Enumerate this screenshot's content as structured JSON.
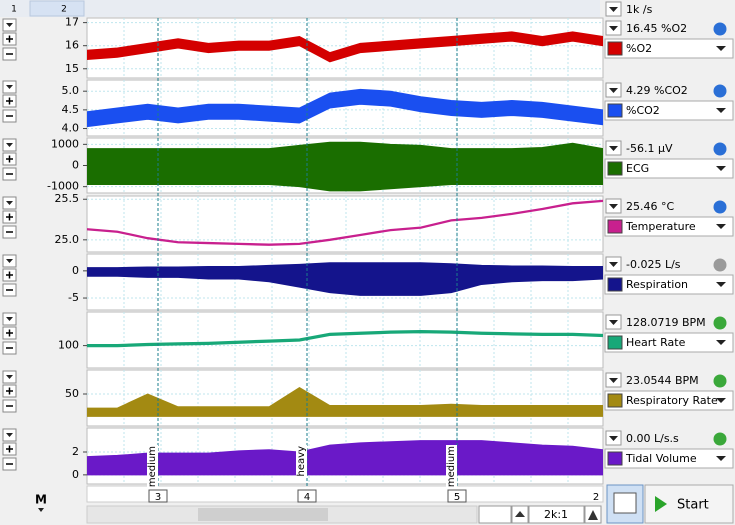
{
  "tabs": [
    "1",
    "2"
  ],
  "sample_rate": "1k /s",
  "channels": [
    {
      "name": "%O2",
      "reading": "16.45 %O2",
      "color": "#d40000",
      "icon_color": "#2a6fd6",
      "ylim": [
        14.6,
        17.2
      ],
      "yticks": [
        15,
        16,
        17
      ],
      "trace": {
        "min": [
          15.4,
          15.5,
          15.7,
          15.9,
          15.7,
          15.8,
          15.8,
          16.0,
          15.3,
          15.7,
          15.8,
          15.9,
          16.0,
          16.1,
          16.2,
          16.0,
          16.2,
          16.0
        ],
        "max": [
          15.8,
          15.9,
          16.1,
          16.3,
          16.1,
          16.2,
          16.2,
          16.4,
          15.7,
          16.1,
          16.2,
          16.3,
          16.4,
          16.5,
          16.6,
          16.4,
          16.6,
          16.4
        ]
      }
    },
    {
      "name": "%CO2",
      "reading": "4.29 %CO2",
      "color": "#1a4ff0",
      "icon_color": "#2a6fd6",
      "ylim": [
        3.8,
        5.3
      ],
      "yticks": [
        {
          "value": 4,
          "label": "4.0"
        },
        {
          "value": 4.5,
          "label": "4.5"
        },
        {
          "value": 5,
          "label": "5.0"
        }
      ],
      "trace": {
        "min": [
          4.05,
          4.15,
          4.25,
          4.15,
          4.25,
          4.25,
          4.2,
          4.15,
          4.55,
          4.65,
          4.6,
          4.45,
          4.35,
          4.3,
          4.35,
          4.3,
          4.2,
          4.1
        ],
        "max": [
          4.45,
          4.55,
          4.65,
          4.55,
          4.65,
          4.65,
          4.6,
          4.55,
          4.95,
          5.05,
          5.0,
          4.85,
          4.75,
          4.7,
          4.75,
          4.7,
          4.6,
          4.5
        ]
      }
    },
    {
      "name": "ECG",
      "reading": "-56.1 µV",
      "color": "#1a6e00",
      "icon_color": "#2a6fd6",
      "ylim": [
        -1300,
        1300
      ],
      "yticks": [
        -1000,
        0,
        1000
      ],
      "trace": {
        "min": [
          -900,
          -900,
          -900,
          -900,
          -900,
          -900,
          -900,
          -1000,
          -1200,
          -1200,
          -1100,
          -1000,
          -900,
          -900,
          -900,
          -900,
          -900,
          -900
        ],
        "max": [
          800,
          800,
          800,
          800,
          800,
          800,
          800,
          950,
          1100,
          1100,
          1000,
          950,
          800,
          800,
          800,
          850,
          1050,
          800
        ]
      }
    },
    {
      "name": "Temperature",
      "reading": "25.46 °C",
      "color": "#c8208e",
      "icon_color": "#2a6fd6",
      "ylim": [
        24.85,
        25.54
      ],
      "yticks": [
        {
          "value": 25,
          "label": "25.0"
        },
        25.5
      ],
      "trace": {
        "min": [
          25.122,
          25.092,
          25.012,
          24.962,
          24.952,
          24.942,
          24.932,
          24.942,
          24.992,
          25.052,
          25.112,
          25.142,
          25.232,
          25.262,
          25.312,
          25.372,
          25.442,
          25.472
        ],
        "max": [
          25.138,
          25.108,
          25.028,
          24.978,
          24.968,
          24.958,
          24.948,
          24.958,
          25.008,
          25.068,
          25.128,
          25.158,
          25.248,
          25.278,
          25.328,
          25.388,
          25.458,
          25.488
        ]
      }
    },
    {
      "name": "Respiration",
      "reading": "-0.025 L/s",
      "color": "#14148c",
      "icon_color": "#9a9a9a",
      "ylim": [
        -7.2,
        3.1
      ],
      "yticks": [
        -5,
        0
      ],
      "trace": {
        "min": [
          -1,
          -1,
          -1.2,
          -1.2,
          -1.5,
          -1.5,
          -2,
          -3,
          -4,
          -4.5,
          -4.5,
          -4.5,
          -4,
          -2.5,
          -2,
          -1.8,
          -1.8,
          -1.5
        ],
        "max": [
          0.6,
          0.6,
          0.7,
          0.7,
          0.8,
          0.8,
          1,
          1.2,
          1.5,
          1.5,
          1.5,
          1.5,
          1.3,
          1,
          0.9,
          0.9,
          0.8,
          0.8
        ]
      }
    },
    {
      "name": "Heart Rate",
      "reading": "128.0719 BPM",
      "color": "#18a878",
      "icon_color": "#3aa83a",
      "ylim": [
        60,
        160
      ],
      "yticks": [
        100
      ],
      "trace": {
        "min": [
          98,
          98,
          100,
          101,
          102,
          104,
          106,
          108,
          118,
          120,
          122,
          123,
          122,
          120,
          119,
          118,
          118,
          116
        ],
        "max": [
          102,
          102,
          104,
          105,
          106,
          108,
          110,
          112,
          122,
          124,
          126,
          127,
          126,
          124,
          123,
          122,
          122,
          120
        ]
      }
    },
    {
      "name": "Respiratory Rate",
      "reading": "23.0544 BPM",
      "color": "#a38a12",
      "icon_color": "#3aa83a",
      "ylim": [
        0,
        87.5
      ],
      "yticks": [
        50
      ],
      "trace": {
        "min": [
          15,
          15,
          15,
          15,
          15,
          15,
          15,
          15,
          15,
          15,
          15,
          15,
          15,
          15,
          15,
          15,
          15,
          15
        ],
        "max": [
          28,
          28,
          50,
          30,
          30,
          30,
          30,
          60,
          32,
          32,
          32,
          32,
          34,
          32,
          32,
          32,
          32,
          32
        ]
      }
    },
    {
      "name": "Tidal Volume",
      "reading": "0.00 L/s.s",
      "color": "#6a19c8",
      "icon_color": "#3aa83a",
      "ylim": [
        -0.8,
        4.1
      ],
      "yticks": [
        0,
        2
      ],
      "trace": {
        "min": [
          0,
          0,
          0,
          0,
          0,
          0,
          0,
          0,
          0,
          0,
          0,
          0,
          0,
          0,
          0,
          0,
          0,
          0
        ],
        "max": [
          1.6,
          1.7,
          1.9,
          1.9,
          1.9,
          2.1,
          2.2,
          2.0,
          2.6,
          2.8,
          2.9,
          3.0,
          3.0,
          3.0,
          2.8,
          2.6,
          2.5,
          2.2
        ]
      }
    }
  ],
  "comments": [
    {
      "number": "3",
      "text": "medium"
    },
    {
      "number": "4",
      "text": "heavy"
    },
    {
      "number": "5",
      "text": "medium"
    }
  ],
  "axis_end_label": "2",
  "toolbar": {
    "marker": "M",
    "zoom": "2k:1",
    "start": "Start"
  }
}
